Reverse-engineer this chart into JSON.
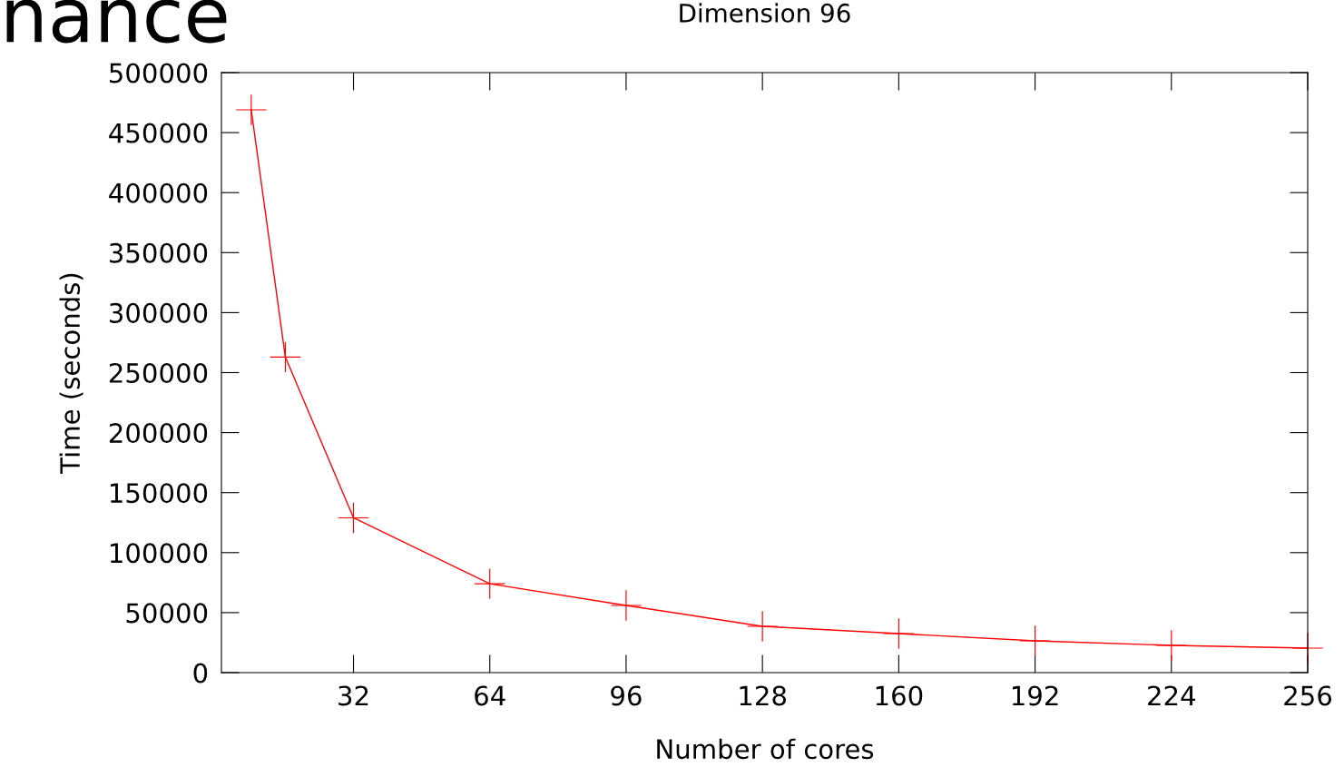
{
  "chart_data": {
    "type": "line",
    "title": "Dimension 96",
    "xlabel": "Number of cores",
    "ylabel": "Time (seconds)",
    "annotations": [
      "nance"
    ],
    "x": [
      8,
      16,
      32,
      64,
      96,
      128,
      160,
      192,
      224,
      256
    ],
    "series": [
      {
        "color": "#ff0000",
        "values": [
          469000,
          263000,
          129000,
          74000,
          56000,
          38600,
          32500,
          26500,
          22700,
          20400
        ]
      }
    ],
    "xlim": [
      1,
      256
    ],
    "xticks": [
      32,
      64,
      96,
      128,
      160,
      192,
      224,
      256
    ],
    "ylim": [
      0,
      500000
    ],
    "yticks": [
      0,
      50000,
      100000,
      150000,
      200000,
      250000,
      300000,
      350000,
      400000,
      450000,
      500000
    ],
    "marker": "cross",
    "line_style": "solid",
    "grid": false,
    "legend": false
  }
}
